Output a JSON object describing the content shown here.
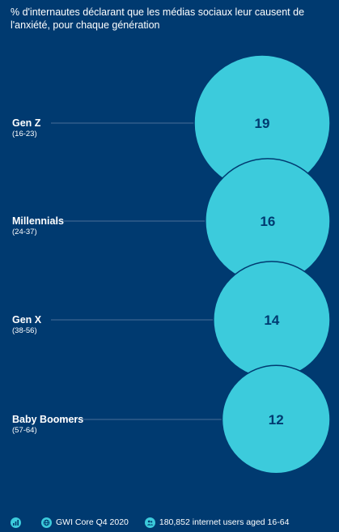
{
  "title": "% d'internautes déclarant que les médias sociaux leur causent de l'anxiété, pour chaque génération",
  "chart_data": {
    "type": "bubble",
    "title": "% d'internautes déclarant que les médias sociaux leur causent de l'anxiété, pour chaque génération",
    "categories": [
      "Gen Z",
      "Millennials",
      "Gen X",
      "Baby Boomers"
    ],
    "age_ranges": [
      "(16-23)",
      "(24-37)",
      "(38-56)",
      "(57-64)"
    ],
    "values": [
      19,
      16,
      14,
      12
    ],
    "colors": {
      "background": "#003a70",
      "bubble": "#3ccbdc",
      "bubble_stroke": "#003a70",
      "value_text": "#003a70",
      "guide_line": "#4a6f99"
    }
  },
  "footer": {
    "source": "GWI Core Q4 2020",
    "sample": "180,852 internet users aged 16-64",
    "icons": [
      "chart-icon",
      "globe-icon",
      "people-icon"
    ]
  }
}
